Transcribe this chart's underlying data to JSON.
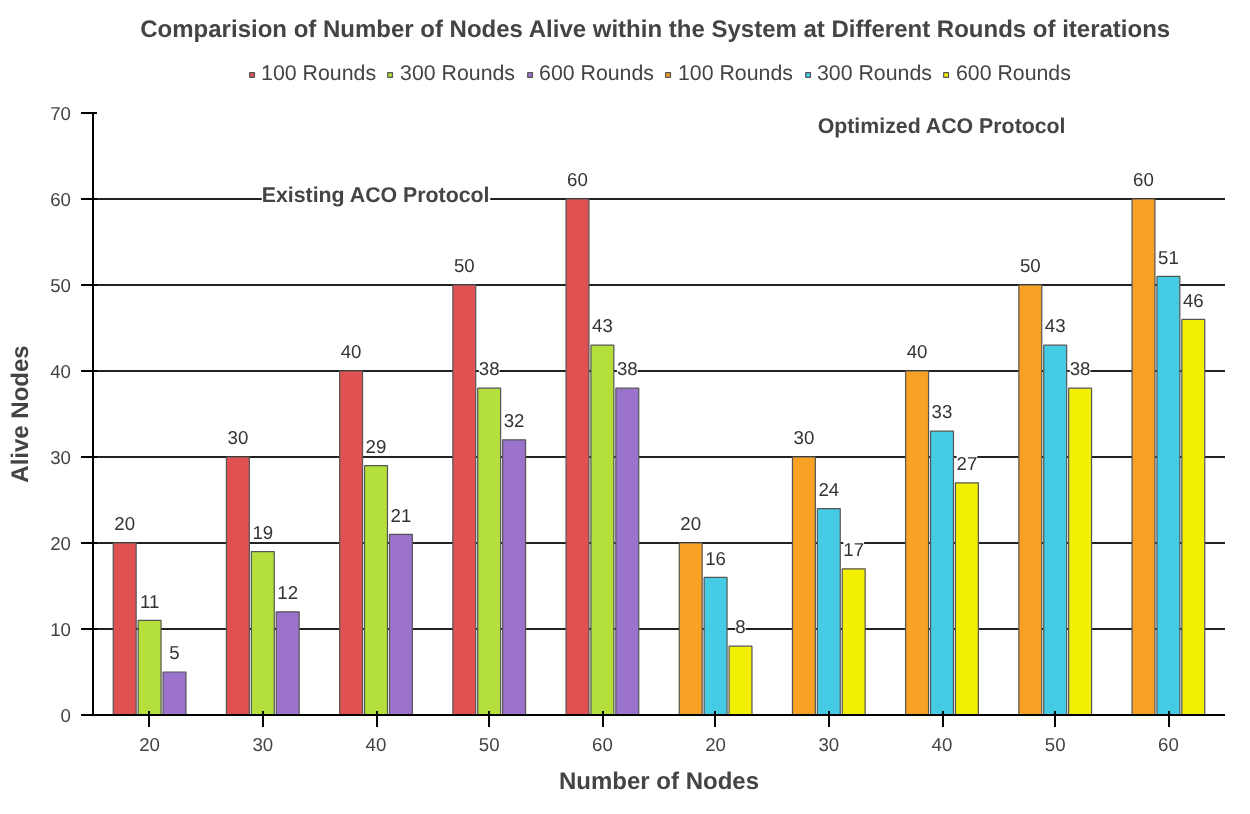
{
  "chart_data": {
    "type": "bar",
    "title": "Comparision of  Number of Nodes Alive within the System at Different Rounds of iterations",
    "xlabel": "Number of Nodes",
    "ylabel": "Alive Nodes",
    "categories": [
      "20",
      "30",
      "40",
      "50",
      "60",
      "20",
      "30",
      "40",
      "50",
      "60"
    ],
    "series": [
      {
        "name": "100 Rounds",
        "color": "#e05252",
        "values": [
          20,
          30,
          40,
          50,
          60,
          null,
          null,
          null,
          null,
          null
        ]
      },
      {
        "name": "300 Rounds",
        "color": "#b5e03c",
        "values": [
          11,
          19,
          29,
          38,
          43,
          null,
          null,
          null,
          null,
          null
        ]
      },
      {
        "name": "600 Rounds",
        "color": "#9b72cc",
        "values": [
          5,
          12,
          21,
          32,
          38,
          null,
          null,
          null,
          null,
          null
        ]
      },
      {
        "name": "100 Rounds",
        "color": "#f7a125",
        "values": [
          null,
          null,
          null,
          null,
          null,
          20,
          30,
          40,
          50,
          60
        ]
      },
      {
        "name": "300 Rounds",
        "color": "#45cbe3",
        "values": [
          null,
          null,
          null,
          null,
          null,
          16,
          24,
          33,
          43,
          51
        ]
      },
      {
        "name": "600 Rounds",
        "color": "#f2f000",
        "values": [
          null,
          null,
          null,
          null,
          null,
          8,
          17,
          27,
          38,
          46
        ]
      }
    ],
    "ylim": [
      0,
      70
    ],
    "yticks": [
      0,
      10,
      20,
      30,
      40,
      50,
      60,
      70
    ],
    "grid": "y",
    "legend": "top",
    "data_labels": true,
    "annotations": [
      "Existing ACO Protocol",
      "Optimized ACO Protocol"
    ]
  }
}
